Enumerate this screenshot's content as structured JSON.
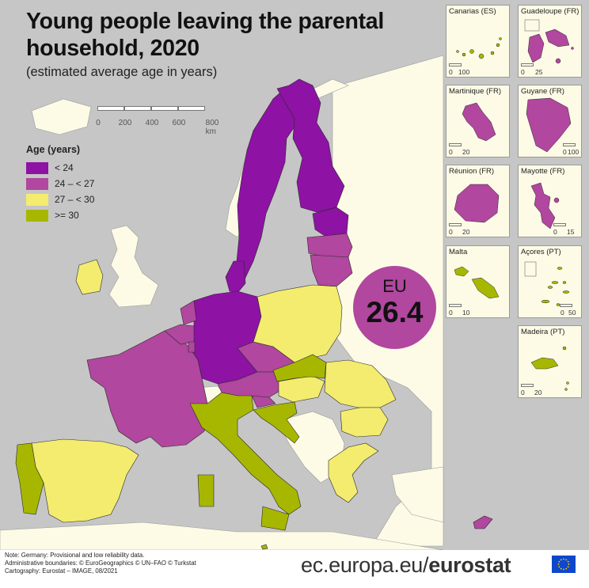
{
  "title_line1": "Young people leaving the parental",
  "title_line2": "household, 2020",
  "subtitle": "(estimated average age in years)",
  "scale": {
    "labels": [
      "0",
      "200",
      "400",
      "600",
      "800 km"
    ]
  },
  "legend": {
    "title": "Age (years)",
    "items": [
      {
        "label": "< 24",
        "color": "#8e12a4"
      },
      {
        "label": "24 – < 27",
        "color": "#b1479e"
      },
      {
        "label": "27 – < 30",
        "color": "#f3ec6f"
      },
      {
        "label": ">= 30",
        "color": "#a7b700"
      }
    ]
  },
  "eu_badge": {
    "label": "EU",
    "value": "26.4"
  },
  "insets": [
    {
      "name": "Canarias (ES)",
      "scale": [
        "0",
        "100"
      ],
      "class": ">= 30"
    },
    {
      "name": "Guadeloupe (FR)",
      "scale": [
        "0",
        "25"
      ],
      "class": "24 – < 27"
    },
    {
      "name": "Martinique (FR)",
      "scale": [
        "0",
        "20"
      ],
      "class": "24 – < 27"
    },
    {
      "name": "Guyane (FR)",
      "scale": [
        "0",
        "100"
      ],
      "class": "24 – < 27"
    },
    {
      "name": "Réunion (FR)",
      "scale": [
        "0",
        "20"
      ],
      "class": "24 – < 27"
    },
    {
      "name": "Mayotte (FR)",
      "scale": [
        "0",
        "15"
      ],
      "class": "24 – < 27"
    },
    {
      "name": "Malta",
      "scale": [
        "0",
        "10"
      ],
      "class": ">= 30"
    },
    {
      "name": "Açores (PT)",
      "scale": [
        "0",
        "50"
      ],
      "class": ">= 30"
    },
    {
      "name": "Madeira (PT)",
      "scale": [
        "0",
        "20"
      ],
      "class": ">= 30"
    }
  ],
  "regions": [
    {
      "name": "Sweden",
      "class": "< 24"
    },
    {
      "name": "Finland",
      "class": "< 24"
    },
    {
      "name": "Denmark",
      "class": "< 24"
    },
    {
      "name": "Germany",
      "class": "< 24"
    },
    {
      "name": "Estonia",
      "class": "< 24"
    },
    {
      "name": "Latvia",
      "class": "24 – < 27"
    },
    {
      "name": "Lithuania",
      "class": "24 – < 27"
    },
    {
      "name": "France",
      "class": "24 – < 27"
    },
    {
      "name": "Netherlands",
      "class": "24 – < 27"
    },
    {
      "name": "Belgium",
      "class": "24 – < 27"
    },
    {
      "name": "Luxembourg",
      "class": "24 – < 27"
    },
    {
      "name": "Czechia",
      "class": "24 – < 27"
    },
    {
      "name": "Austria",
      "class": "24 – < 27"
    },
    {
      "name": "Slovenia",
      "class": "24 – < 27"
    },
    {
      "name": "Cyprus",
      "class": "24 – < 27"
    },
    {
      "name": "Poland",
      "class": "27 – < 30"
    },
    {
      "name": "Spain",
      "class": "27 – < 30"
    },
    {
      "name": "Hungary",
      "class": "27 – < 30"
    },
    {
      "name": "Romania",
      "class": "27 – < 30"
    },
    {
      "name": "Bulgaria",
      "class": "27 – < 30"
    },
    {
      "name": "Greece",
      "class": "27 – < 30"
    },
    {
      "name": "Ireland",
      "class": "27 – < 30"
    },
    {
      "name": "Portugal",
      "class": ">= 30"
    },
    {
      "name": "Italy",
      "class": ">= 30"
    },
    {
      "name": "Slovakia",
      "class": ">= 30"
    },
    {
      "name": "Croatia",
      "class": ">= 30"
    },
    {
      "name": "Malta",
      "class": ">= 30"
    }
  ],
  "colors": {
    "sea": "#c6c6c6",
    "land_other": "#fdfbe6",
    "no_data": "#e3e3e3",
    "eu_badge": "#b1479e"
  },
  "footer": {
    "note1": "Note: Germany: Provisional and low reliability data.",
    "note2": "Administrative boundaries: © EuroGeographics © UN–FAO © Turkstat",
    "note3": "Cartography: Eurostat – IMAGE, 08/2021",
    "url_plain": "ec.europa.eu/",
    "url_bold": "eurostat"
  }
}
